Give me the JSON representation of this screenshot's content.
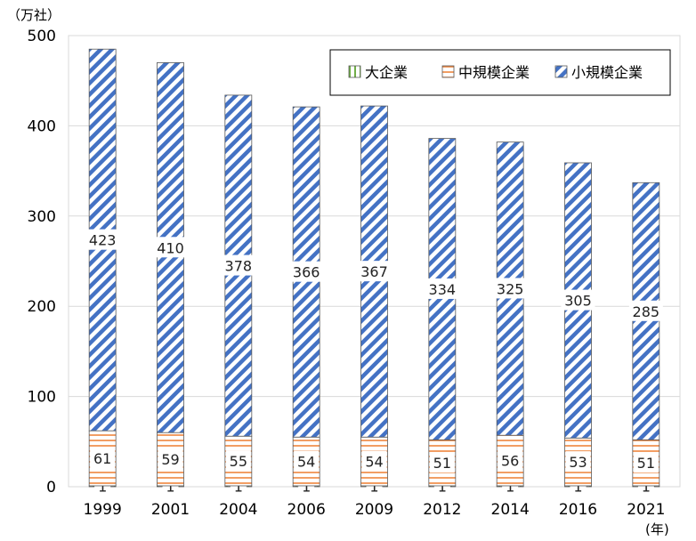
{
  "chart_data": {
    "type": "bar",
    "stacked": true,
    "categories": [
      "1999",
      "2001",
      "2004",
      "2006",
      "2009",
      "2012",
      "2014",
      "2016",
      "2021"
    ],
    "series": [
      {
        "name": "大企業",
        "values": [
          1,
          1,
          1,
          1,
          1,
          1,
          1,
          1,
          1
        ],
        "color": "#70ad47"
      },
      {
        "name": "中規模企業",
        "values": [
          61,
          59,
          55,
          54,
          54,
          51,
          56,
          53,
          51
        ],
        "color": "#ed7d31"
      },
      {
        "name": "小規模企業",
        "values": [
          423,
          410,
          378,
          366,
          367,
          334,
          325,
          305,
          285
        ],
        "color": "#4472c4"
      }
    ],
    "ylim": [
      0,
      500
    ],
    "yticks": [
      0,
      100,
      200,
      300,
      400,
      500
    ],
    "y_unit": "（万社）",
    "x_unit": "(年)",
    "grid": true,
    "legend": "top-right"
  }
}
